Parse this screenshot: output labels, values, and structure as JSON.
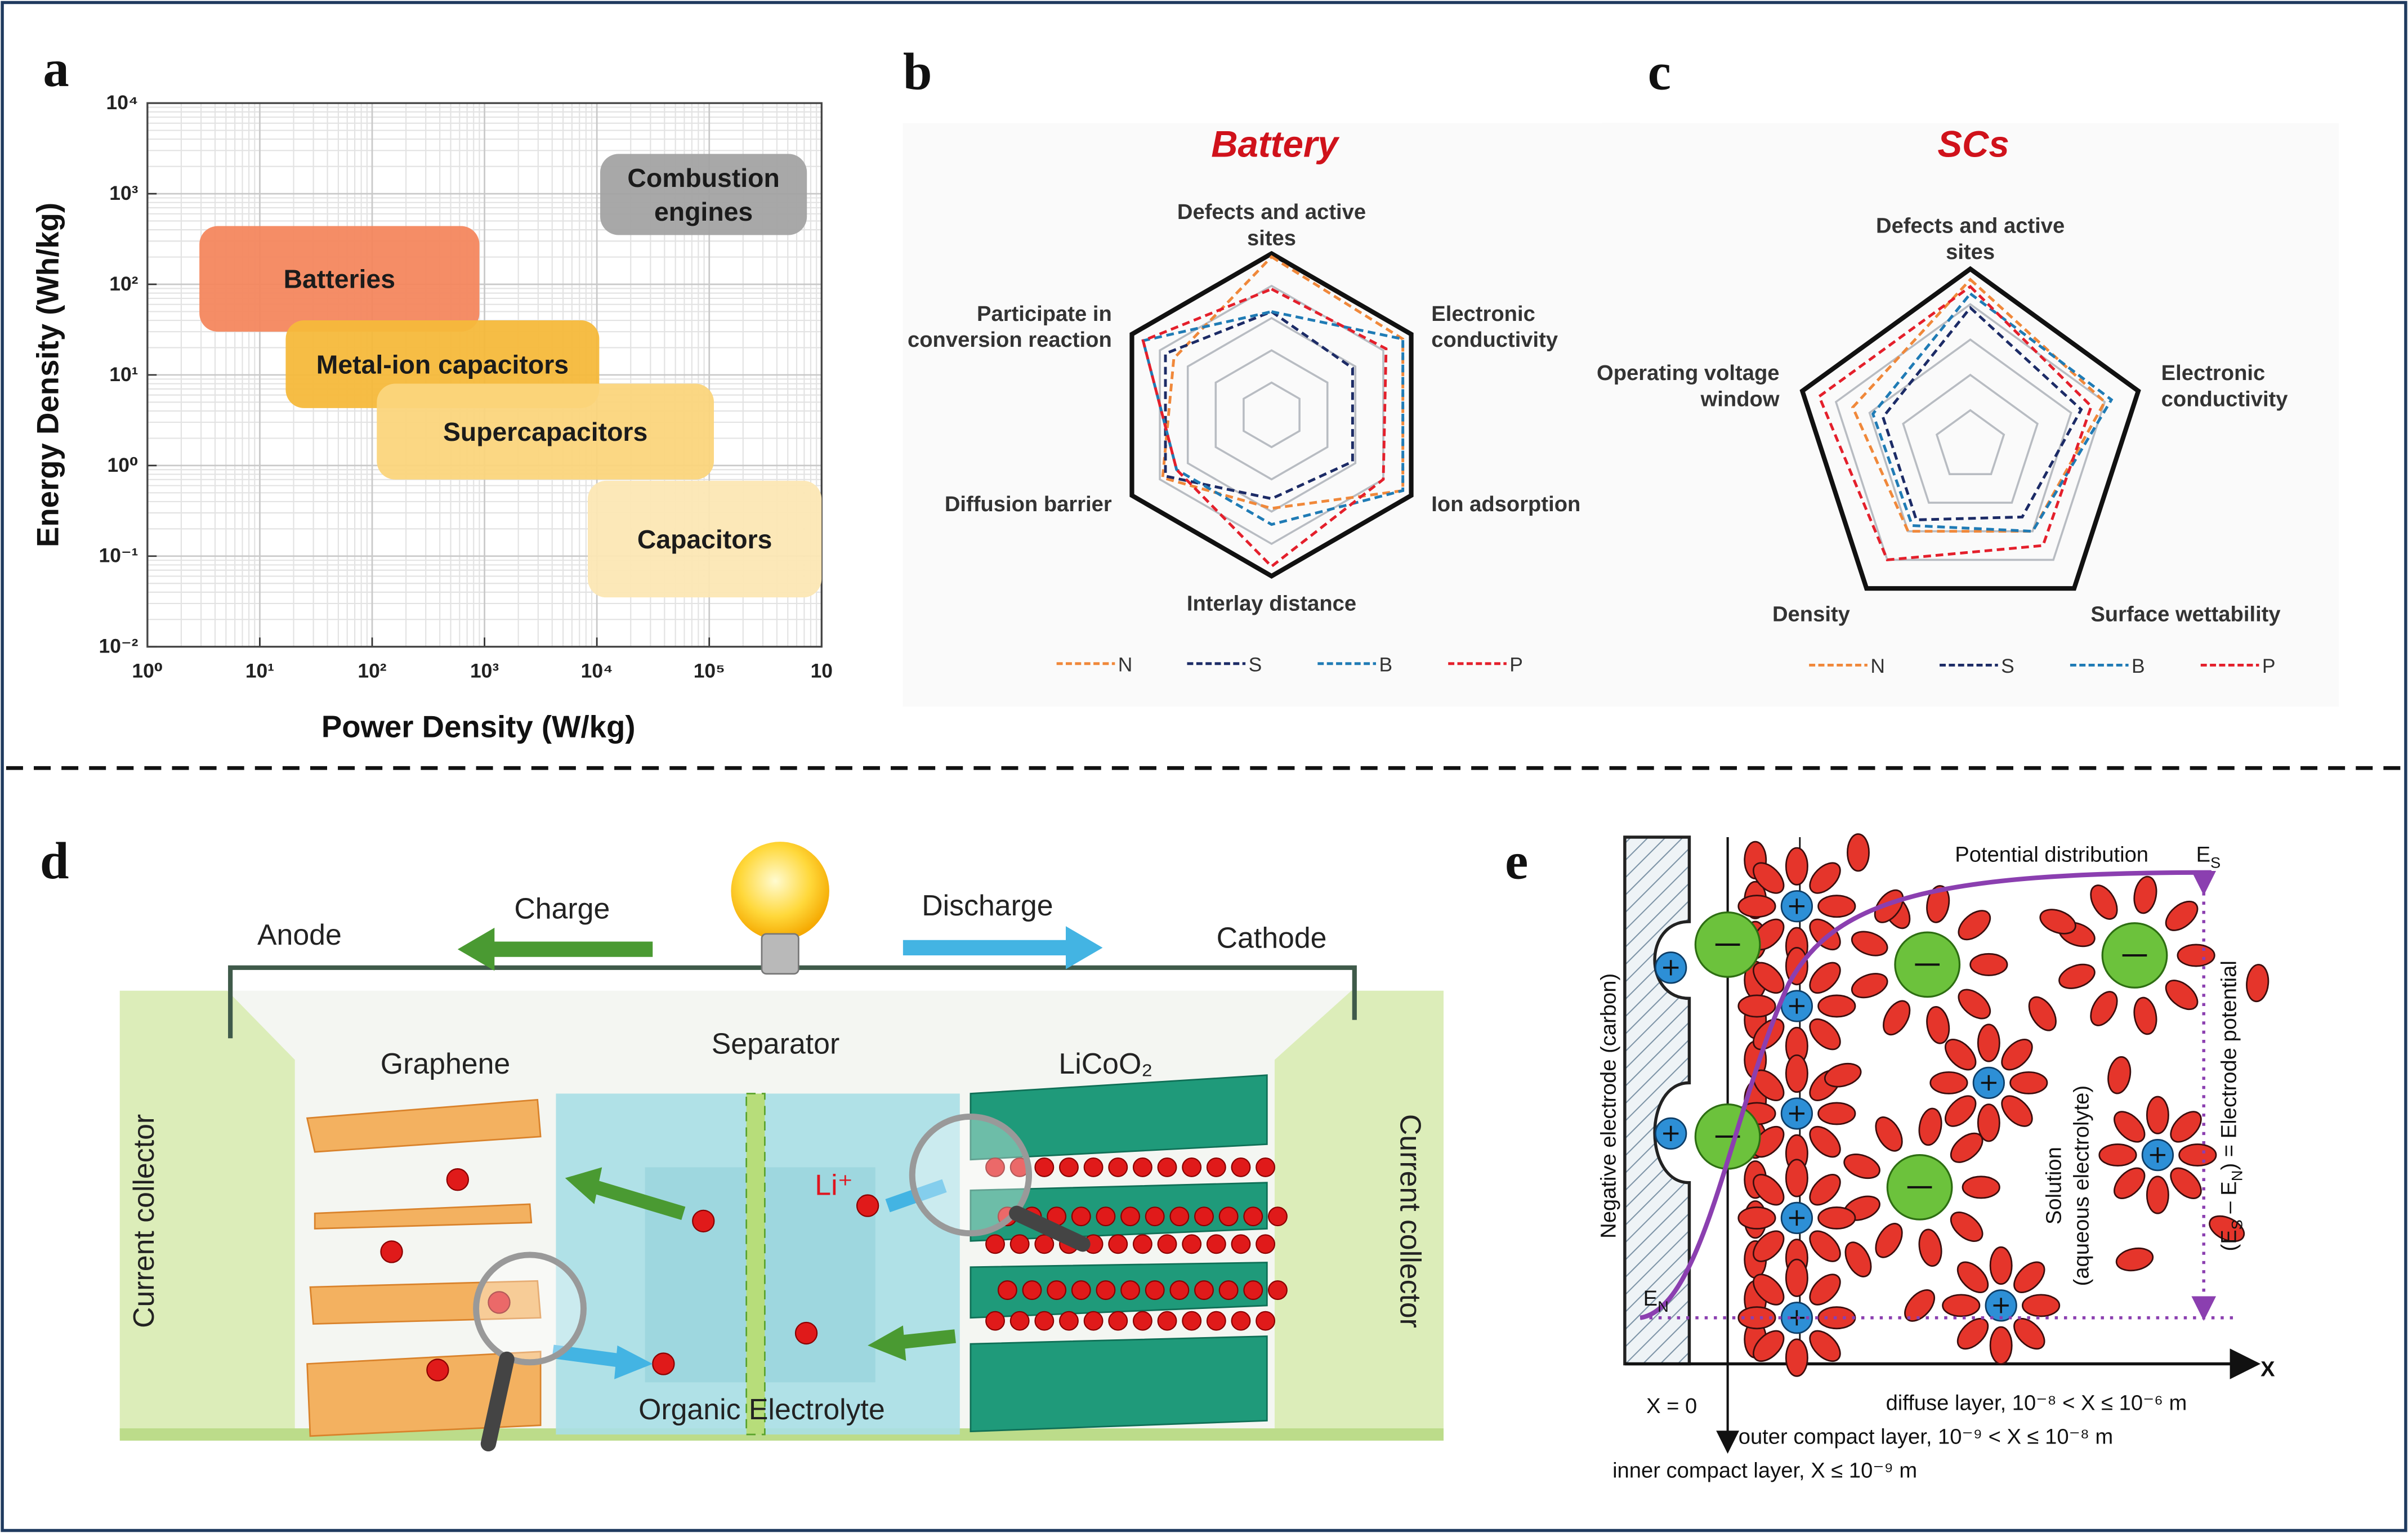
{
  "panel_labels": [
    "a",
    "b",
    "c",
    "d",
    "e"
  ],
  "chart_data": [
    {
      "type": "range",
      "x_label": "Power Density (W/kg)",
      "y_label": "Energy Density (Wh/kg)",
      "xscale": "log",
      "yscale": "log",
      "grid": true,
      "xlim": [
        1,
        1000000
      ],
      "ylim": [
        0.01,
        10000
      ],
      "xticks": [
        {
          "value": 1,
          "label": "10⁰"
        },
        {
          "value": 10,
          "label": "10¹"
        },
        {
          "value": 100,
          "label": "10²"
        },
        {
          "value": 1000,
          "label": "10³"
        },
        {
          "value": 10000,
          "label": "10⁴"
        },
        {
          "value": 100000,
          "label": "10⁵"
        },
        {
          "value": 1000000,
          "label": "10"
        }
      ],
      "yticks": [
        {
          "value": 0.01,
          "label": "10⁻²"
        },
        {
          "value": 0.1,
          "label": "10⁻¹"
        },
        {
          "value": 1,
          "label": "10⁰"
        },
        {
          "value": 10,
          "label": "10¹"
        },
        {
          "value": 100,
          "label": "10²"
        },
        {
          "value": 1000,
          "label": "10³"
        },
        {
          "value": 10000,
          "label": "10⁴"
        }
      ],
      "regions": [
        {
          "name": "Batteries",
          "color": "#f4875e",
          "x": [
            2.9,
            900
          ],
          "y": [
            30,
            440
          ]
        },
        {
          "name": "Metal-ion capacitors",
          "color": "#f6b93b",
          "x": [
            17,
            10500
          ],
          "y": [
            4.3,
            40
          ]
        },
        {
          "name": "Supercapacitors",
          "color": "#fbd57c",
          "x": [
            110,
            110000
          ],
          "y": [
            0.7,
            8
          ]
        },
        {
          "name": "Capacitors",
          "color": "#fce7b4",
          "x": [
            8300,
            1000000
          ],
          "y": [
            0.035,
            0.68
          ]
        },
        {
          "name": "Combustion engines",
          "color": "#a3a3a3",
          "x": [
            10700,
            740000
          ],
          "y": [
            350,
            2750
          ]
        }
      ]
    },
    {
      "type": "radar",
      "title": "Battery",
      "axes": [
        "Defects and active sites",
        "Electronic conductivity",
        "Ion adsorption",
        "Interlay distance",
        "Diffusion barrier",
        "Participate in conversion reaction"
      ],
      "rlim": [
        0,
        5
      ],
      "rticks": [
        1,
        2,
        3,
        4,
        5
      ],
      "series": [
        {
          "name": "N",
          "color": "#f0883a",
          "values": [
            4.9,
            4.7,
            4.7,
            2.9,
            3.9,
            3.5
          ]
        },
        {
          "name": "S",
          "color": "#1c2b66",
          "values": [
            3.2,
            2.9,
            2.9,
            2.6,
            3.8,
            3.8
          ]
        },
        {
          "name": "B",
          "color": "#1f7bb5",
          "values": [
            3.2,
            4.7,
            4.7,
            3.4,
            3.4,
            4.6
          ]
        },
        {
          "name": "P",
          "color": "#e41f2b",
          "values": [
            3.9,
            4.1,
            4.0,
            4.7,
            3.4,
            4.6
          ]
        }
      ]
    },
    {
      "type": "radar",
      "title": "SCs",
      "axes": [
        "Defects and active sites",
        "Electronic conductivity",
        "Surface wettability",
        "Density",
        "Operating voltage window"
      ],
      "rlim": [
        0,
        5
      ],
      "rticks": [
        1,
        2,
        3,
        4,
        5
      ],
      "series": [
        {
          "name": "N",
          "color": "#f0883a",
          "values": [
            4.7,
            4.0,
            3.0,
            3.0,
            3.5
          ]
        },
        {
          "name": "S",
          "color": "#1c2b66",
          "values": [
            3.9,
            3.3,
            2.5,
            2.6,
            2.6
          ]
        },
        {
          "name": "B",
          "color": "#1f7bb5",
          "values": [
            4.3,
            4.2,
            3.0,
            2.8,
            2.9
          ]
        },
        {
          "name": "P",
          "color": "#e41f2b",
          "values": [
            4.5,
            3.6,
            3.5,
            4.0,
            4.5
          ]
        }
      ]
    }
  ],
  "diagram_d": {
    "charge": "Charge",
    "discharge": "Discharge",
    "anode": "Anode",
    "cathode": "Cathode",
    "graphene": "Graphene",
    "separator": "Separator",
    "licoo2": "LiCoO₂",
    "li_ion": "Li⁺",
    "current_collector_left": "Current collector",
    "current_collector_right": "Current collector",
    "electrolyte": "Organic Electrolyte"
  },
  "diagram_e": {
    "potential_distribution": "Potential distribution",
    "es": [
      "E",
      "S"
    ],
    "en": [
      "E",
      "N"
    ],
    "negative_electrode": "Negative electrode (carbon)",
    "solution": [
      "Solution",
      "(aqueous electrolyte)"
    ],
    "electrode_potential": [
      "(E",
      "S",
      " – E",
      "N",
      ") = Electrode potential"
    ],
    "x_axis": "X",
    "x_zero": "X = 0",
    "diffuse_layer": "diffuse layer, 10⁻⁸ < X ≤ 10⁻⁶ m",
    "outer_layer": "outer compact layer, 10⁻⁹ < X ≤ 10⁻⁸ m",
    "inner_layer": "inner compact layer, X ≤ 10⁻⁹ m"
  }
}
